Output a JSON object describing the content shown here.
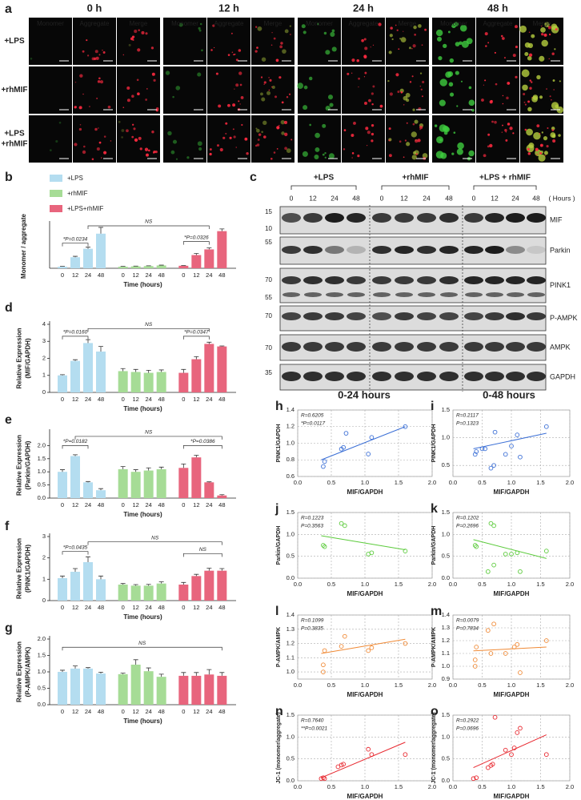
{
  "panel_a": {
    "panel": "a",
    "columns": [
      "0 h",
      "12 h",
      "24 h",
      "48 h"
    ],
    "channels": [
      "Monomer",
      "Aggregate",
      "Merge"
    ],
    "rows": [
      [
        "+LPS"
      ],
      [
        "+rhMIF"
      ],
      [
        "+LPS",
        "+rhMIF"
      ]
    ]
  },
  "panel_c": {
    "panel": "c",
    "groups": [
      "+LPS",
      "+rhMIF",
      "+LPS + rhMIF"
    ],
    "timepoints": [
      "0",
      "12",
      "24",
      "48"
    ],
    "unit": "( Hours )",
    "proteins": [
      "MIF",
      "Parkin",
      "PINK1",
      "P-AMPK",
      "AMPK",
      "GAPDH"
    ],
    "markers": [
      "15",
      "10",
      "55",
      "70",
      "55",
      "70",
      "70",
      "35"
    ]
  },
  "column_headers": [
    "0-24 hours",
    "0-48 hours"
  ],
  "chart_data": [
    {
      "type": "bar",
      "panel": "b",
      "ylabel": [
        "Monomer / aggregate"
      ],
      "xlabel": "Time (hours)",
      "categories": [
        "0",
        "12",
        "24",
        "48"
      ],
      "legend": true,
      "series": [
        {
          "name": "+LPS",
          "color": "#b4ddf0",
          "values": [
            0.05,
            0.35,
            0.62,
            1.1
          ],
          "errors": [
            0.01,
            0.03,
            0.05,
            0.2
          ]
        },
        {
          "name": "+rhMIF",
          "color": "#a6dc96",
          "values": [
            0.05,
            0.06,
            0.07,
            0.09
          ],
          "errors": [
            0.01,
            0.01,
            0.01,
            0.01
          ]
        },
        {
          "name": "+LPS+rhMIF",
          "color": "#e8657d",
          "values": [
            0.08,
            0.42,
            0.6,
            1.18
          ],
          "errors": [
            0.01,
            0.05,
            0.05,
            0.07
          ]
        }
      ],
      "ylim": [
        0,
        1.4
      ],
      "annotations": [
        "*P=0.0234",
        "*P=0.0326",
        "NS"
      ]
    },
    {
      "type": "bar",
      "panel": "d",
      "ylabel": [
        "Relative Expression",
        "(MIF/GAPDH)"
      ],
      "xlabel": "Time (hours)",
      "categories": [
        "0",
        "12",
        "24",
        "48"
      ],
      "series": [
        {
          "color": "#b4ddf0",
          "values": [
            1.0,
            1.85,
            2.9,
            2.4
          ],
          "errors": [
            0.04,
            0.07,
            0.2,
            0.3
          ]
        },
        {
          "color": "#a6dc96",
          "values": [
            1.25,
            1.2,
            1.15,
            1.2
          ],
          "errors": [
            0.15,
            0.15,
            0.15,
            0.12
          ]
        },
        {
          "color": "#e8657d",
          "values": [
            1.15,
            1.95,
            2.85,
            2.7
          ],
          "errors": [
            0.2,
            0.15,
            0.1,
            0.03
          ]
        }
      ],
      "ylim": [
        0,
        4
      ],
      "yticks": [
        0,
        1,
        2,
        3,
        4
      ],
      "annotations": [
        "*P=0.0160",
        "*P=0.0347",
        "NS"
      ]
    },
    {
      "type": "bar",
      "panel": "e",
      "ylabel": [
        "Relative Expression",
        "(Parkin/GAPDH)"
      ],
      "xlabel": "Time (hours)",
      "categories": [
        "0",
        "12",
        "24",
        "48"
      ],
      "series": [
        {
          "color": "#b4ddf0",
          "values": [
            1.0,
            1.6,
            0.6,
            0.3
          ],
          "errors": [
            0.08,
            0.05,
            0.03,
            0.06
          ]
        },
        {
          "color": "#a6dc96",
          "values": [
            1.1,
            1.0,
            1.05,
            1.1
          ],
          "errors": [
            0.1,
            0.08,
            0.1,
            0.08
          ]
        },
        {
          "color": "#e8657d",
          "values": [
            1.15,
            1.55,
            0.6,
            0.1
          ],
          "errors": [
            0.15,
            0.08,
            0.02,
            0.03
          ]
        }
      ],
      "ylim": [
        0,
        2.5
      ],
      "yticks": [
        {
          "value": 0,
          "label": "0.0"
        },
        0.5,
        {
          "value": 1,
          "label": "1.0"
        },
        1.5,
        {
          "value": 2,
          "label": "2.0"
        }
      ],
      "annotations": [
        "*P=0.0182",
        "*P=0.0386",
        "NS"
      ]
    },
    {
      "type": "bar",
      "panel": "f",
      "ylabel": [
        "Relative Expression",
        "(PINK1/GAPDH)"
      ],
      "xlabel": "Time (hours)",
      "categories": [
        "0",
        "12",
        "24",
        "48"
      ],
      "series": [
        {
          "color": "#b4ddf0",
          "values": [
            1.05,
            1.35,
            1.8,
            1.0
          ],
          "errors": [
            0.1,
            0.15,
            0.25,
            0.15
          ]
        },
        {
          "color": "#a6dc96",
          "values": [
            0.75,
            0.7,
            0.7,
            0.8
          ],
          "errors": [
            0.05,
            0.05,
            0.06,
            0.08
          ]
        },
        {
          "color": "#e8657d",
          "values": [
            0.75,
            1.15,
            1.4,
            1.4
          ],
          "errors": [
            0.1,
            0.08,
            0.12,
            0.1
          ]
        }
      ],
      "ylim": [
        0,
        3
      ],
      "yticks": [
        0,
        1,
        2,
        3
      ],
      "annotations": [
        "*P=0.0435",
        "NS",
        "NS"
      ]
    },
    {
      "type": "bar",
      "panel": "g",
      "ylabel": [
        "Relative Expression",
        "(P-AMPK/AMPK)"
      ],
      "xlabel": "Time (hours)",
      "categories": [
        "0",
        "12",
        "24",
        "48"
      ],
      "series": [
        {
          "color": "#b4ddf0",
          "values": [
            1.0,
            1.1,
            1.1,
            0.95
          ],
          "errors": [
            0.05,
            0.08,
            0.03,
            0.04
          ]
        },
        {
          "color": "#a6dc96",
          "values": [
            0.93,
            1.22,
            1.02,
            0.85
          ],
          "errors": [
            0.03,
            0.15,
            0.1,
            0.08
          ]
        },
        {
          "color": "#e8657d",
          "values": [
            0.88,
            0.88,
            0.92,
            0.88
          ],
          "errors": [
            0.1,
            0.1,
            0.15,
            0.1
          ]
        }
      ],
      "ylim": [
        0,
        2
      ],
      "yticks": [
        {
          "value": 0,
          "label": "0.0"
        },
        0.5,
        {
          "value": 1,
          "label": "1.0"
        },
        1.5,
        {
          "value": 2,
          "label": "2.0"
        }
      ],
      "annotations": [
        "NS"
      ]
    },
    {
      "type": "scatter",
      "panel": "h",
      "xlabel": "MIF/GAPDH",
      "ylabel": "PINK1/GAPDH",
      "color": "#3b6fd6",
      "grid": true,
      "x": [
        0.38,
        0.4,
        0.65,
        0.68,
        0.72,
        1.05,
        1.1,
        1.6
      ],
      "y": [
        0.72,
        0.78,
        0.93,
        0.95,
        1.12,
        0.87,
        1.07,
        1.2
      ],
      "fit": {
        "x": [
          0.35,
          1.6
        ],
        "y": [
          0.8,
          1.2
        ]
      },
      "annotations": [
        "R=0.6205",
        "*P=0.0117"
      ],
      "xlim": [
        0,
        2
      ],
      "xticks": [
        {
          "value": 0,
          "label": "0.0"
        },
        0.5,
        {
          "value": 1,
          "label": "1.0"
        },
        1.5,
        {
          "value": 2,
          "label": "2.0"
        }
      ],
      "ylim": [
        0.6,
        1.4
      ],
      "yticks": [
        0.6,
        0.8,
        {
          "value": 1,
          "label": "1.0"
        },
        1.2,
        1.4
      ]
    },
    {
      "type": "scatter",
      "panel": "i",
      "xlabel": "MIF/GAPDH",
      "ylabel": "PINK1/GAPDH",
      "color": "#3b6fd6",
      "grid": true,
      "x": [
        0.38,
        0.4,
        0.5,
        0.55,
        0.65,
        0.7,
        0.72,
        0.9,
        1.0,
        1.1,
        1.15,
        1.6
      ],
      "y": [
        0.7,
        0.75,
        0.8,
        0.8,
        0.45,
        0.5,
        1.1,
        0.7,
        0.85,
        1.05,
        0.65,
        1.2
      ],
      "fit": {
        "x": [
          0.35,
          1.6
        ],
        "y": [
          0.8,
          1.08
        ]
      },
      "annotations": [
        "R=0.2117",
        "P=0.1323"
      ],
      "xlim": [
        0,
        2
      ],
      "xticks": [
        {
          "value": 0,
          "label": "0.0"
        },
        0.5,
        {
          "value": 1,
          "label": "1.0"
        },
        1.5,
        {
          "value": 2,
          "label": "2.0"
        }
      ],
      "ylim": [
        0.3,
        1.5
      ],
      "yticks": [
        0.5,
        {
          "value": 1,
          "label": "1.0"
        },
        1.5
      ]
    },
    {
      "type": "scatter",
      "panel": "j",
      "xlabel": "MIF/GAPDH",
      "ylabel": "Parkin/GAPDH",
      "color": "#5ccb3c",
      "grid": true,
      "x": [
        0.38,
        0.4,
        0.65,
        0.7,
        1.05,
        1.1,
        1.6
      ],
      "y": [
        0.75,
        0.72,
        1.25,
        1.2,
        0.55,
        0.58,
        0.62
      ],
      "fit": {
        "x": [
          0.35,
          1.6
        ],
        "y": [
          0.97,
          0.65
        ]
      },
      "annotations": [
        "R=0.1223",
        "P=0.3563"
      ],
      "xlim": [
        0,
        2
      ],
      "xticks": [
        {
          "value": 0,
          "label": "0.0"
        },
        0.5,
        {
          "value": 1,
          "label": "1.0"
        },
        1.5,
        {
          "value": 2,
          "label": "2.0"
        }
      ],
      "ylim": [
        0,
        1.5
      ],
      "yticks": [
        {
          "value": 0,
          "label": "0.0"
        },
        0.5,
        {
          "value": 1,
          "label": "1.0"
        },
        1.5
      ]
    },
    {
      "type": "scatter",
      "panel": "k",
      "xlabel": "MIF/GAPDH",
      "ylabel": "Parkin/GAPDH",
      "color": "#5ccb3c",
      "grid": true,
      "x": [
        0.38,
        0.4,
        0.6,
        0.65,
        0.7,
        0.7,
        0.9,
        1.0,
        1.1,
        1.15,
        1.6
      ],
      "y": [
        0.75,
        0.72,
        0.15,
        1.25,
        1.2,
        0.3,
        0.55,
        0.55,
        0.58,
        0.15,
        0.62
      ],
      "fit": {
        "x": [
          0.35,
          1.6
        ],
        "y": [
          0.88,
          0.45
        ]
      },
      "annotations": [
        "R=0.1202",
        "P=0.2696"
      ],
      "xlim": [
        0,
        2
      ],
      "xticks": [
        {
          "value": 0,
          "label": "0.0"
        },
        0.5,
        {
          "value": 1,
          "label": "1.0"
        },
        1.5,
        {
          "value": 2,
          "label": "2.0"
        }
      ],
      "ylim": [
        0,
        1.5
      ],
      "yticks": [
        {
          "value": 0,
          "label": "0.0"
        },
        0.5,
        {
          "value": 1,
          "label": "1.0"
        },
        1.5
      ]
    },
    {
      "type": "scatter",
      "panel": "l",
      "xlabel": "MIF/GAPDH",
      "ylabel": "P-AMPK/AMPK",
      "color": "#f08a36",
      "grid": true,
      "x": [
        0.38,
        0.38,
        0.4,
        0.65,
        0.7,
        1.05,
        1.1,
        1.6
      ],
      "y": [
        1.0,
        1.05,
        1.15,
        1.18,
        1.25,
        1.15,
        1.17,
        1.2
      ],
      "fit": {
        "x": [
          0.35,
          1.6
        ],
        "y": [
          1.13,
          1.23
        ]
      },
      "annotations": [
        "R=0.1099",
        "P=0.3835"
      ],
      "xlim": [
        0,
        2
      ],
      "xticks": [
        {
          "value": 0,
          "label": "0.0"
        },
        0.5,
        {
          "value": 1,
          "label": "1.0"
        },
        1.5,
        {
          "value": 2,
          "label": "2.0"
        }
      ],
      "ylim": [
        0.95,
        1.4
      ],
      "yticks": [
        {
          "value": 1,
          "label": "1.0"
        },
        1.1,
        1.2,
        1.3,
        1.4
      ]
    },
    {
      "type": "scatter",
      "panel": "m",
      "xlabel": "MIF/GAPDH",
      "ylabel": "P-AMPK/AMPK",
      "color": "#f08a36",
      "grid": true,
      "x": [
        0.38,
        0.38,
        0.4,
        0.6,
        0.65,
        0.7,
        0.9,
        1.05,
        1.1,
        1.15,
        1.6
      ],
      "y": [
        1.0,
        1.05,
        1.15,
        1.28,
        1.1,
        1.33,
        1.1,
        1.15,
        1.17,
        0.95,
        1.2
      ],
      "fit": {
        "x": [
          0.35,
          1.6
        ],
        "y": [
          1.12,
          1.15
        ]
      },
      "annotations": [
        "R=0.0079",
        "P=0.7834"
      ],
      "xlim": [
        0,
        2
      ],
      "xticks": [
        {
          "value": 0,
          "label": "0.0"
        },
        0.5,
        {
          "value": 1,
          "label": "1.0"
        },
        1.5,
        {
          "value": 2,
          "label": "2.0"
        }
      ],
      "ylim": [
        0.9,
        1.4
      ],
      "yticks": [
        0.9,
        {
          "value": 1,
          "label": "1.0"
        },
        1.1,
        1.2,
        1.3,
        1.4
      ]
    },
    {
      "type": "scatter",
      "panel": "n",
      "xlabel": "MIF/GAPDH",
      "ylabel": "JC-1 (monomer/aggregate)",
      "color": "#e8282f",
      "grid": true,
      "x": [
        0.35,
        0.38,
        0.4,
        0.6,
        0.65,
        0.68,
        1.05,
        1.1,
        1.6
      ],
      "y": [
        0.05,
        0.07,
        0.05,
        0.32,
        0.36,
        0.38,
        0.72,
        0.6,
        0.6
      ],
      "fit": {
        "x": [
          0.35,
          1.6
        ],
        "y": [
          0.07,
          0.88
        ]
      },
      "annotations": [
        "R=0.7640",
        "**P=0.0021"
      ],
      "xlim": [
        0,
        2
      ],
      "xticks": [
        {
          "value": 0,
          "label": "0.0"
        },
        0.5,
        {
          "value": 1,
          "label": "1.0"
        },
        1.5,
        {
          "value": 2,
          "label": "2.0"
        }
      ],
      "ylim": [
        0,
        1.5
      ],
      "yticks": [
        {
          "value": 0,
          "label": "0.0"
        },
        0.5,
        {
          "value": 1,
          "label": "1.0"
        },
        1.5
      ]
    },
    {
      "type": "scatter",
      "panel": "o",
      "xlabel": "MIF/GAPDH",
      "ylabel": "JC-1 (monomer/aggregate)",
      "color": "#e8282f",
      "grid": true,
      "x": [
        0.35,
        0.4,
        0.6,
        0.65,
        0.68,
        0.72,
        0.9,
        1.0,
        1.05,
        1.1,
        1.15,
        1.6
      ],
      "y": [
        0.05,
        0.07,
        0.3,
        0.35,
        0.38,
        1.45,
        0.7,
        0.6,
        0.75,
        1.1,
        1.2,
        0.6
      ],
      "fit": {
        "x": [
          0.35,
          1.6
        ],
        "y": [
          0.3,
          1.05
        ]
      },
      "annotations": [
        "R=0.2922",
        "P=0.0696"
      ],
      "xlim": [
        0,
        2
      ],
      "xticks": [
        {
          "value": 0,
          "label": "0.0"
        },
        0.5,
        {
          "value": 1,
          "label": "1.0"
        },
        1.5,
        {
          "value": 2,
          "label": "2.0"
        }
      ],
      "ylim": [
        0,
        1.5
      ],
      "yticks": [
        {
          "value": 0,
          "label": "0.0"
        },
        0.5,
        {
          "value": 1,
          "label": "1.0"
        },
        1.5
      ]
    }
  ]
}
